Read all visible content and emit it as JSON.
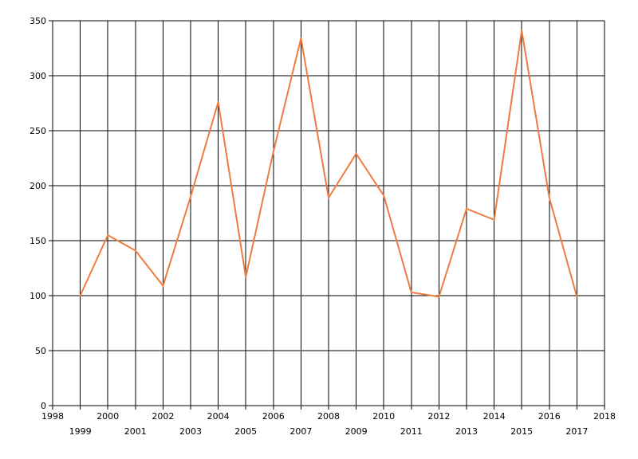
{
  "chart_data": {
    "type": "line",
    "title": "",
    "xlabel": "",
    "ylabel": "",
    "xlim": [
      1998,
      2018
    ],
    "ylim": [
      0,
      350
    ],
    "x_ticks": [
      "1998",
      "1999",
      "2000",
      "2001",
      "2002",
      "2003",
      "2004",
      "2005",
      "2006",
      "2007",
      "2008",
      "2009",
      "2010",
      "2011",
      "2012",
      "2013",
      "2014",
      "2015",
      "2016",
      "2017",
      "2018"
    ],
    "y_ticks": [
      "0",
      "50",
      "100",
      "150",
      "200",
      "250",
      "300",
      "350"
    ],
    "grid": true,
    "legend": "none",
    "series": [
      {
        "color": "#f07b3f",
        "x": [
          1999,
          2000,
          2001,
          2002,
          2003,
          2004,
          2005,
          2006,
          2007,
          2008,
          2009,
          2010,
          2011,
          2012,
          2013,
          2014,
          2015,
          2016,
          2017
        ],
        "values": [
          100,
          155,
          141,
          109,
          190,
          276,
          117,
          231,
          334,
          189,
          229,
          191,
          103,
          99,
          179,
          169,
          341,
          189,
          99
        ]
      }
    ]
  }
}
